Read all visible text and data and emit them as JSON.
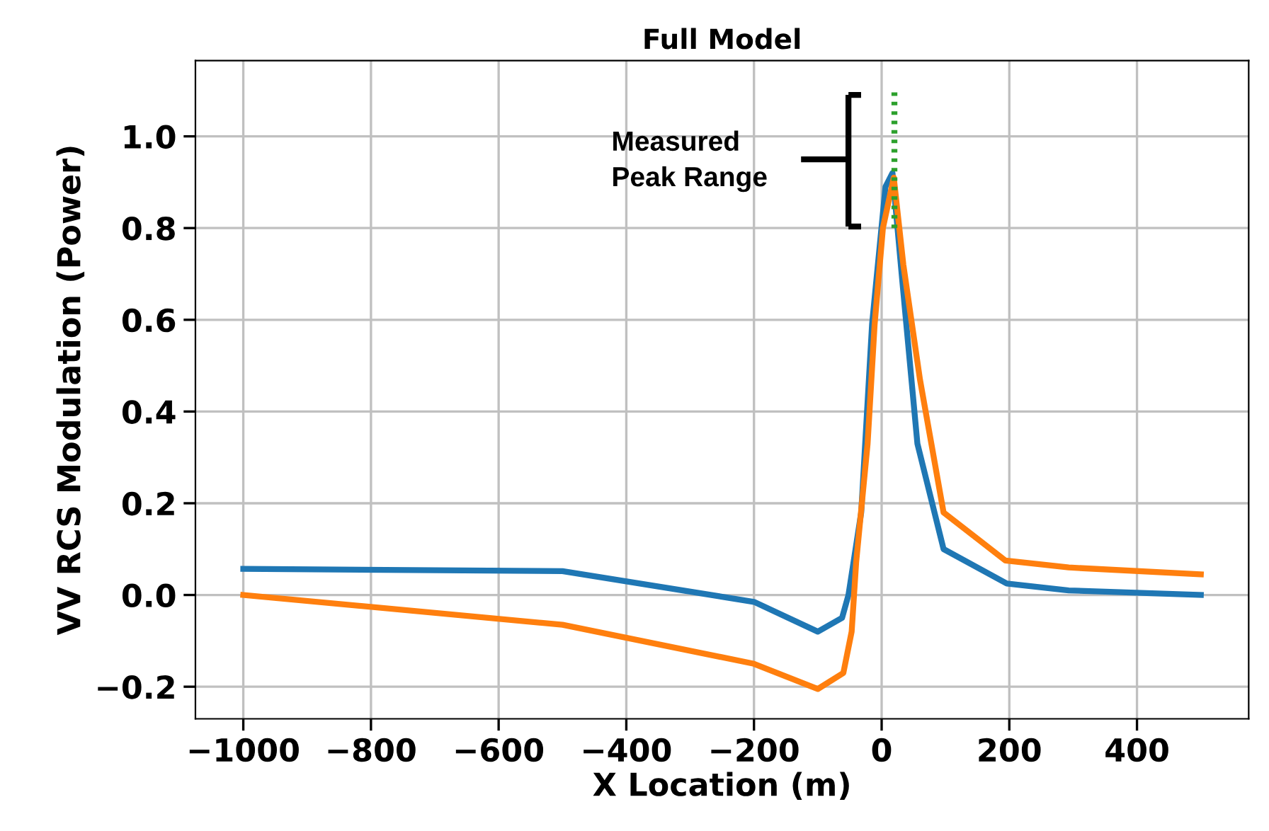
{
  "chart_data": {
    "type": "line",
    "title": "Full Model",
    "xlabel": "X Location (m)",
    "ylabel": "VV RCS Modulation (Power)",
    "series": [
      {
        "color": "#1f77b4",
        "x": [
          -1000,
          -500,
          -200,
          -100,
          -62,
          -52,
          -32,
          -15,
          6,
          17,
          32,
          56,
          97,
          196,
          293,
          500
        ],
        "values": [
          0.057,
          0.052,
          -0.015,
          -0.08,
          -0.05,
          0.0,
          0.18,
          0.59,
          0.89,
          0.92,
          0.69,
          0.33,
          0.1,
          0.025,
          0.01,
          0.0
        ]
      },
      {
        "color": "#ff7f0e",
        "x": [
          -1000,
          -500,
          -200,
          -100,
          -60,
          -47,
          -40,
          -22,
          -11,
          2,
          19,
          34,
          60,
          97,
          194,
          293,
          500
        ],
        "values": [
          0.0,
          -0.065,
          -0.15,
          -0.205,
          -0.17,
          -0.08,
          0.07,
          0.33,
          0.59,
          0.8,
          0.91,
          0.72,
          0.47,
          0.18,
          0.075,
          0.06,
          0.045
        ]
      },
      {
        "color": "#2ca02c",
        "line_style": "dotted",
        "x": [
          20,
          20
        ],
        "values": [
          0.8,
          1.1
        ]
      }
    ],
    "xlim": [
      -1075,
      575
    ],
    "ylim": [
      -0.27,
      1.165
    ],
    "xticks": [
      {
        "value": -1000,
        "label": "−1000"
      },
      {
        "value": -800,
        "label": "−800"
      },
      {
        "value": -600,
        "label": "−600"
      },
      {
        "value": -400,
        "label": "−400"
      },
      {
        "value": -200,
        "label": "−200"
      },
      0,
      200,
      400
    ],
    "yticks": [
      {
        "value": -0.2,
        "label": "−0.2"
      },
      {
        "value": 0.0,
        "label": "0.0"
      },
      {
        "value": 0.2,
        "label": "0.2"
      },
      {
        "value": 0.4,
        "label": "0.4"
      },
      {
        "value": 0.6,
        "label": "0.6"
      },
      {
        "value": 0.8,
        "label": "0.8"
      },
      {
        "value": 1.0,
        "label": "1.0"
      }
    ],
    "grid": true,
    "annotations": [
      "Measured\nPeak Range"
    ]
  }
}
